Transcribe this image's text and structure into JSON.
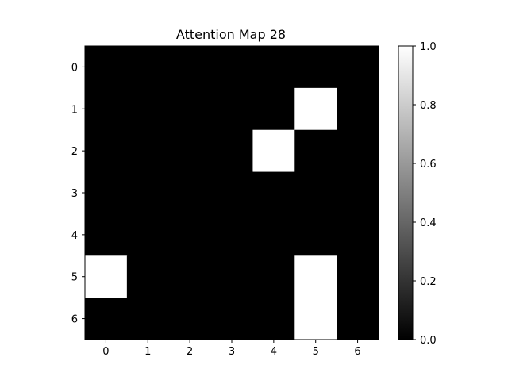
{
  "chart_data": {
    "type": "heatmap",
    "title": "Attention Map 28",
    "xlabel": "",
    "ylabel": "",
    "x_ticks": [
      "0",
      "1",
      "2",
      "3",
      "4",
      "5",
      "6"
    ],
    "y_ticks": [
      "0",
      "1",
      "2",
      "3",
      "4",
      "5",
      "6"
    ],
    "values": [
      [
        0,
        0,
        0,
        0,
        0,
        0,
        0
      ],
      [
        0,
        0,
        0,
        0,
        0,
        1,
        0
      ],
      [
        0,
        0,
        0,
        0,
        1,
        0,
        0
      ],
      [
        0,
        0,
        0,
        0,
        0,
        0,
        0
      ],
      [
        0,
        0,
        0,
        0,
        0,
        0,
        0
      ],
      [
        1,
        0,
        0,
        0,
        0,
        1,
        0
      ],
      [
        0,
        0,
        0,
        0,
        0,
        1,
        0
      ]
    ],
    "colormap": "gray",
    "colormap_colors": {
      "low": "#000000",
      "high": "#ffffff"
    },
    "vmin": 0.0,
    "vmax": 1.0,
    "colorbar": {
      "ticks": [
        "0.0",
        "0.2",
        "0.4",
        "0.6",
        "0.8",
        "1.0"
      ],
      "tick_values": [
        0.0,
        0.2,
        0.4,
        0.6,
        0.8,
        1.0
      ],
      "placement": "right"
    },
    "grid": false
  }
}
